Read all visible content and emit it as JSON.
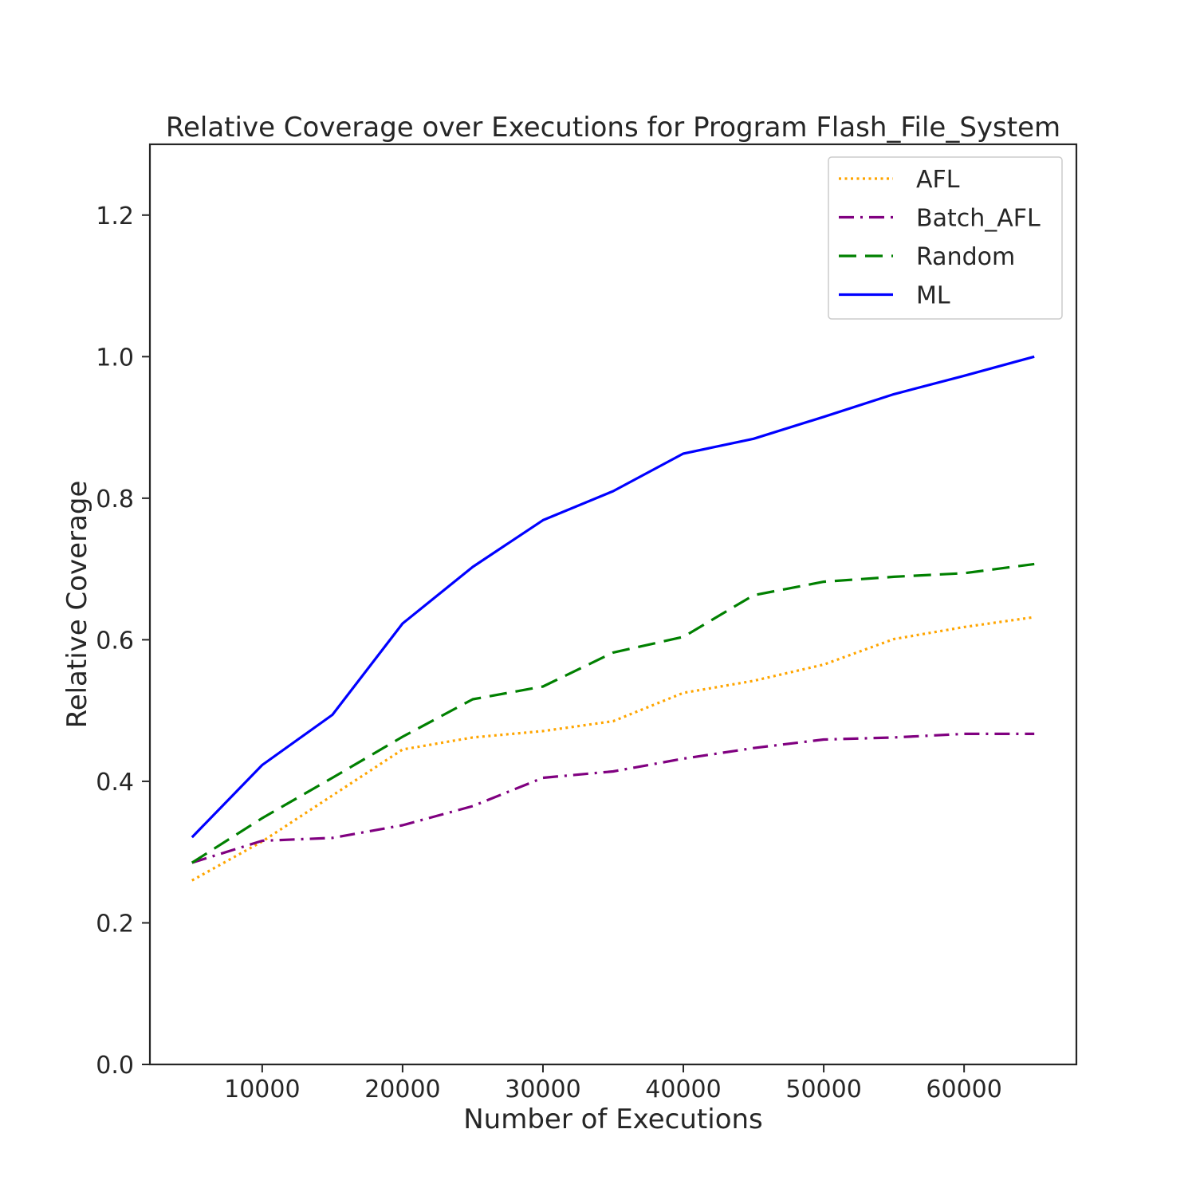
{
  "chart_data": {
    "type": "line",
    "title": "Relative Coverage over Executions for Program Flash_File_System",
    "xlabel": "Number of Executions",
    "ylabel": "Relative Coverage",
    "x": [
      5000,
      10000,
      15000,
      20000,
      25000,
      30000,
      35000,
      40000,
      45000,
      50000,
      55000,
      60000,
      65000
    ],
    "xlim": [
      2000,
      68000
    ],
    "ylim": [
      0,
      1.3
    ],
    "xticks": [
      10000,
      20000,
      30000,
      40000,
      50000,
      60000
    ],
    "xtick_labels": [
      "10000",
      "20000",
      "30000",
      "40000",
      "50000",
      "60000"
    ],
    "yticks": [
      0.0,
      0.2,
      0.4,
      0.6,
      0.8,
      1.0,
      1.2
    ],
    "ytick_labels": [
      "0.0",
      "0.2",
      "0.4",
      "0.6",
      "0.8",
      "1.0",
      "1.2"
    ],
    "grid": false,
    "legend_position": "top-right",
    "series": [
      {
        "name": "AFL",
        "color": "#ffa500",
        "style": "dotted",
        "values": [
          0.26,
          0.315,
          0.38,
          0.445,
          0.462,
          0.471,
          0.485,
          0.525,
          0.542,
          0.565,
          0.601,
          0.618,
          0.632
        ]
      },
      {
        "name": "Batch_AFL",
        "color": "#800080",
        "style": "dashdot",
        "values": [
          0.285,
          0.316,
          0.32,
          0.338,
          0.365,
          0.405,
          0.414,
          0.432,
          0.447,
          0.459,
          0.462,
          0.467,
          0.467
        ]
      },
      {
        "name": "Random",
        "color": "#008000",
        "style": "dashed",
        "values": [
          0.285,
          0.348,
          0.405,
          0.463,
          0.516,
          0.534,
          0.582,
          0.604,
          0.663,
          0.682,
          0.689,
          0.694,
          0.707
        ]
      },
      {
        "name": "ML",
        "color": "#0000ff",
        "style": "solid",
        "values": [
          0.321,
          0.423,
          0.494,
          0.623,
          0.703,
          0.769,
          0.81,
          0.863,
          0.884,
          0.915,
          0.947,
          0.973,
          1.0
        ]
      }
    ]
  }
}
